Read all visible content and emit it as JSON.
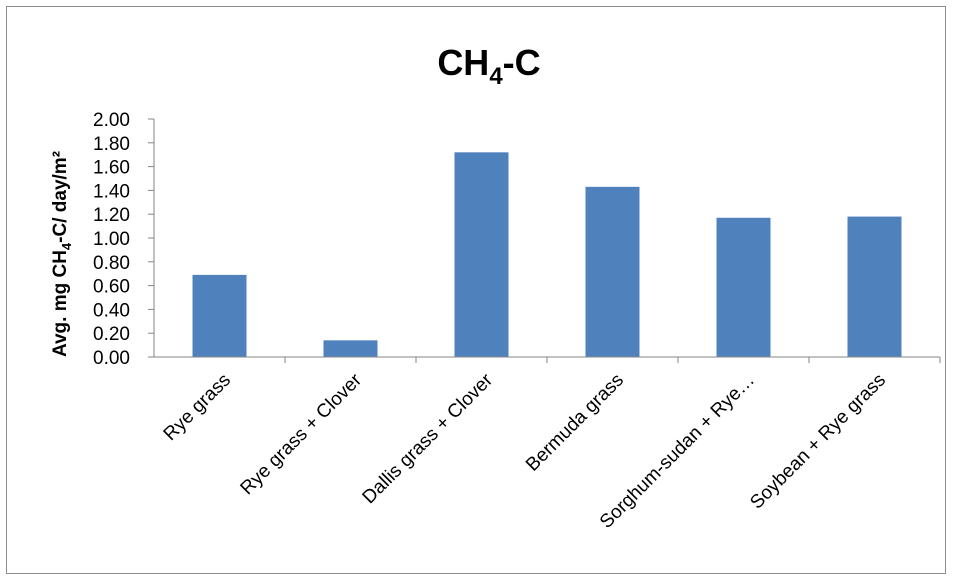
{
  "chart_data": {
    "type": "bar",
    "title": {
      "main": "CH",
      "sub": "4",
      "tail": "-C"
    },
    "ylabel": {
      "pre": "Avg. mg CH",
      "sub": "4",
      "post": "-C/ day/m²"
    },
    "xlabel": "",
    "categories": [
      "Rye grass",
      "Rye grass + Clover",
      "Dallis grass + Clover",
      "Bermuda grass",
      "Sorghum-sudan + Rye…",
      "Soybean + Rye grass"
    ],
    "values": [
      0.69,
      0.14,
      1.72,
      1.43,
      1.17,
      1.18
    ],
    "ylim": [
      0,
      2.0
    ],
    "yticks": [
      "0.00",
      "0.20",
      "0.40",
      "0.60",
      "0.80",
      "1.00",
      "1.20",
      "1.40",
      "1.60",
      "1.80",
      "2.00"
    ],
    "grid": false,
    "legend": "none",
    "bar_color": "#4f81bd"
  }
}
